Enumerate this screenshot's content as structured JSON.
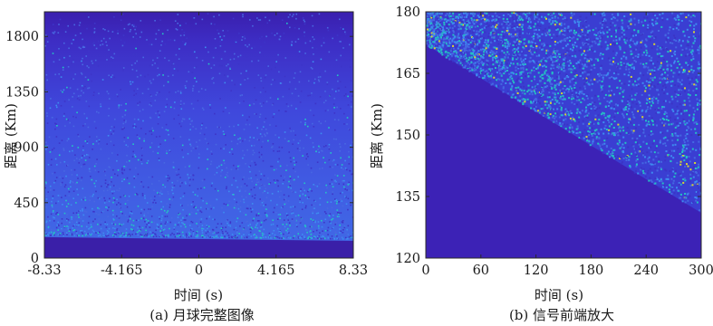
{
  "colors": {
    "background_low": "#3b22b0",
    "background_high": "#3f4ce0",
    "speckle": "#24c6c6",
    "bright": "#d8d434"
  },
  "chart_data": [
    {
      "type": "heatmap",
      "title": "",
      "caption": "(a) 月球完整图像",
      "xlabel": "时间 (s)",
      "ylabel": "距离 (Km)",
      "xlim": [
        -8.33,
        8.33
      ],
      "ylim": [
        0,
        2000
      ],
      "xticks": [
        -8.33,
        -4.165,
        0,
        4.165,
        8.33
      ],
      "xtick_labels": [
        "-8.33",
        "-4.165",
        "0",
        "4.165",
        "8.33"
      ],
      "yticks": [
        0,
        450,
        900,
        1350,
        1800
      ],
      "ytick_labels": [
        "0",
        "450",
        "900",
        "1350",
        "1800"
      ],
      "lunar_edge": {
        "x": [
          -8.33,
          8.33
        ],
        "y": [
          170,
          140
        ]
      }
    },
    {
      "type": "heatmap",
      "title": "",
      "caption": "(b) 信号前端放大",
      "xlabel": "时间 (s)",
      "ylabel": "距离 (Km)",
      "xlim": [
        0,
        300
      ],
      "ylim": [
        120,
        180
      ],
      "xticks": [
        0,
        60,
        120,
        180,
        240,
        300
      ],
      "xtick_labels": [
        "0",
        "60",
        "120",
        "180",
        "240",
        "300"
      ],
      "yticks": [
        120,
        135,
        150,
        165,
        180
      ],
      "ytick_labels": [
        "120",
        "135",
        "150",
        "165",
        "180"
      ],
      "lunar_edge": {
        "x": [
          0,
          300
        ],
        "y": [
          172,
          131
        ]
      }
    }
  ]
}
